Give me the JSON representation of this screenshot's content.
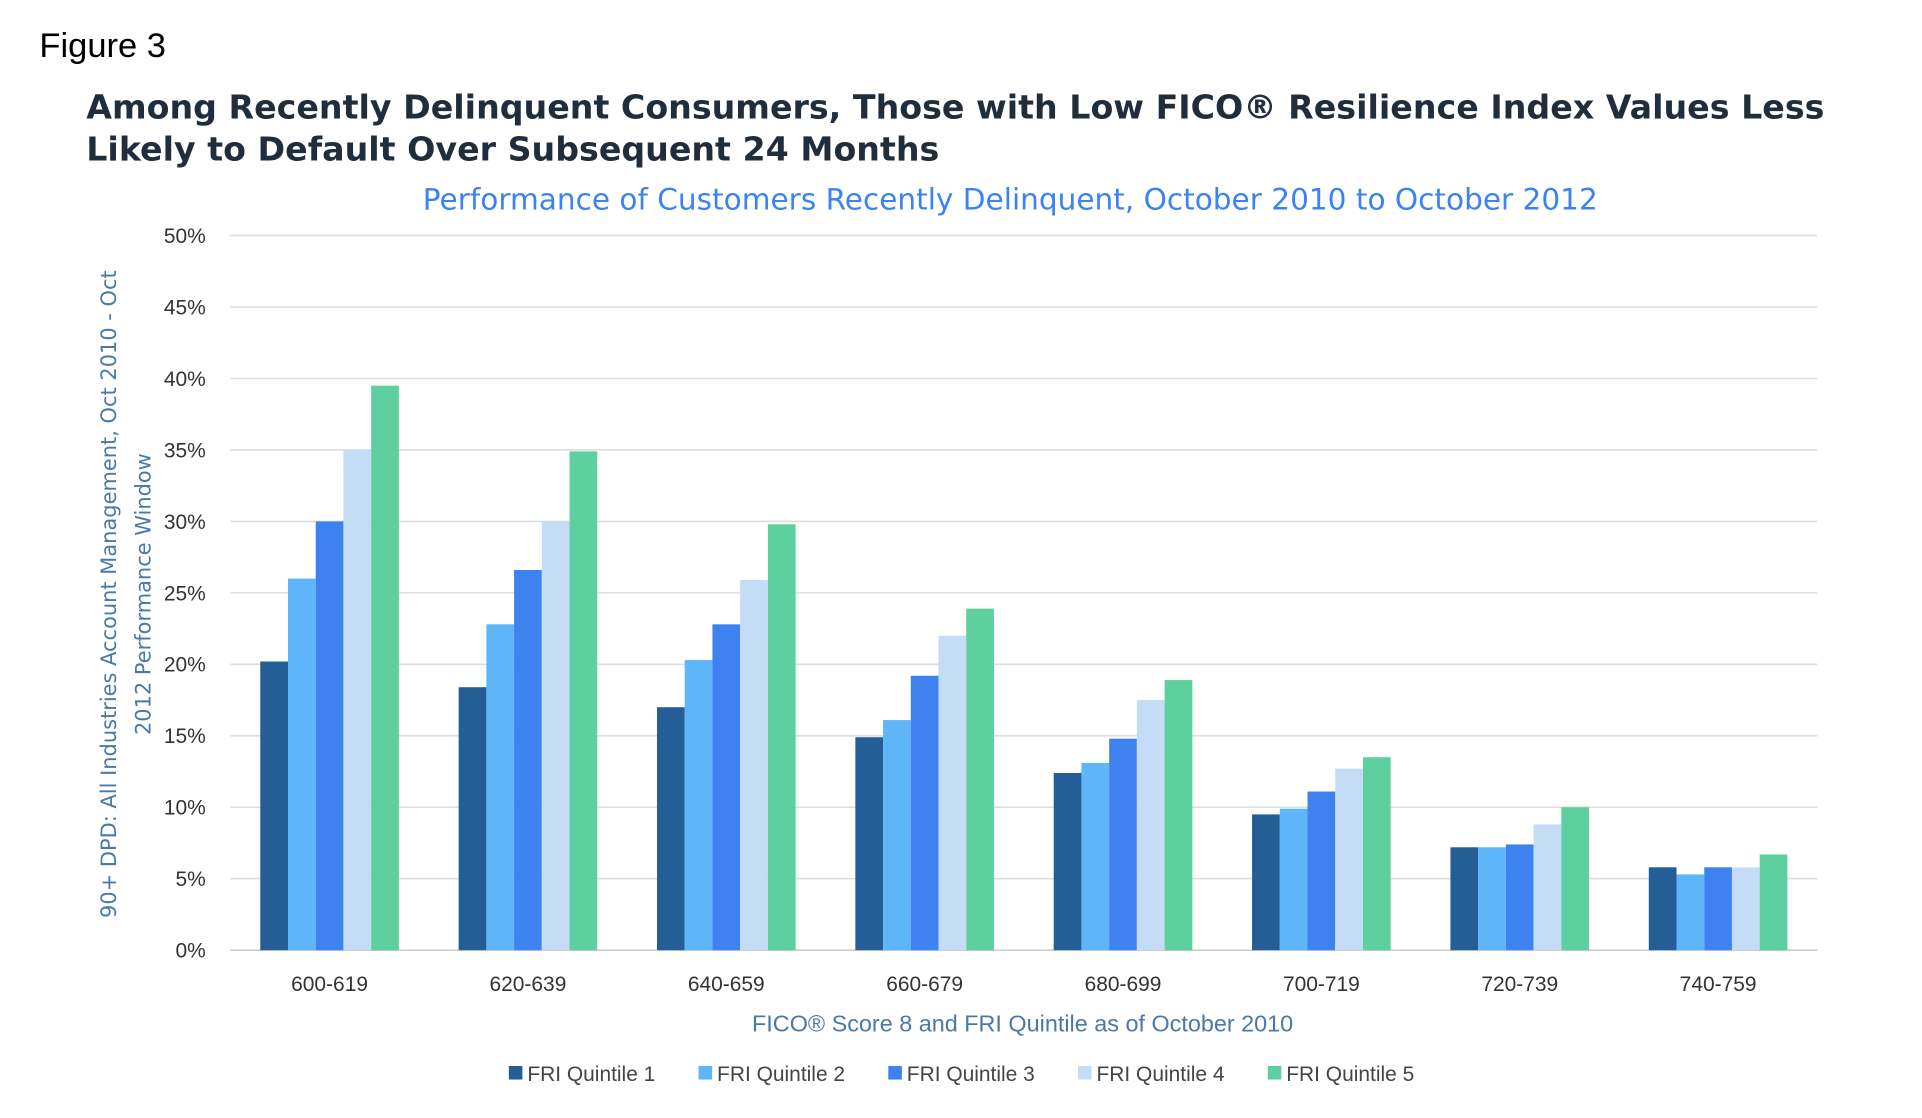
{
  "figure_label": "Figure 3",
  "chart_data": {
    "type": "bar",
    "title_line1": "Among Recently Delinquent Consumers, Those with Low FICO® Resilience Index Values Less",
    "title_line2": "Likely to Default Over Subsequent 24 Months",
    "subtitle": "Performance of Customers Recently Delinquent, October 2010 to October 2012",
    "xlabel": "FICO® Score 8 and FRI Quintile as of October 2010",
    "ylabel_line1": "90+ DPD: All Industries Account Management, Oct 2010 - Oct",
    "ylabel_line2": "2012 Performance Window",
    "ylim": [
      0,
      50
    ],
    "yticks": [
      "0%",
      "5%",
      "10%",
      "15%",
      "20%",
      "25%",
      "30%",
      "35%",
      "40%",
      "45%",
      "50%"
    ],
    "grid": true,
    "legend_position": "bottom",
    "categories": [
      "600-619",
      "620-639",
      "640-659",
      "660-679",
      "680-699",
      "700-719",
      "720-739",
      "740-759"
    ],
    "series": [
      {
        "name": "FRI Quintile 1",
        "color": "#235E96",
        "values": [
          20.2,
          18.4,
          17.0,
          14.9,
          12.4,
          9.5,
          7.2,
          5.8
        ]
      },
      {
        "name": "FRI Quintile 2",
        "color": "#5EB5F7",
        "values": [
          26.0,
          22.8,
          20.3,
          16.1,
          13.1,
          9.9,
          7.2,
          5.3
        ]
      },
      {
        "name": "FRI Quintile 3",
        "color": "#3E82F0",
        "values": [
          30.0,
          26.6,
          22.8,
          19.2,
          14.8,
          11.1,
          7.4,
          5.8
        ]
      },
      {
        "name": "FRI Quintile 4",
        "color": "#C5DCF6",
        "values": [
          35.0,
          30.0,
          25.9,
          22.0,
          17.5,
          12.7,
          8.8,
          5.8
        ]
      },
      {
        "name": "FRI Quintile 5",
        "color": "#5ECF9E",
        "values": [
          39.5,
          34.9,
          29.8,
          23.9,
          18.9,
          13.5,
          10.0,
          6.7
        ]
      }
    ]
  }
}
